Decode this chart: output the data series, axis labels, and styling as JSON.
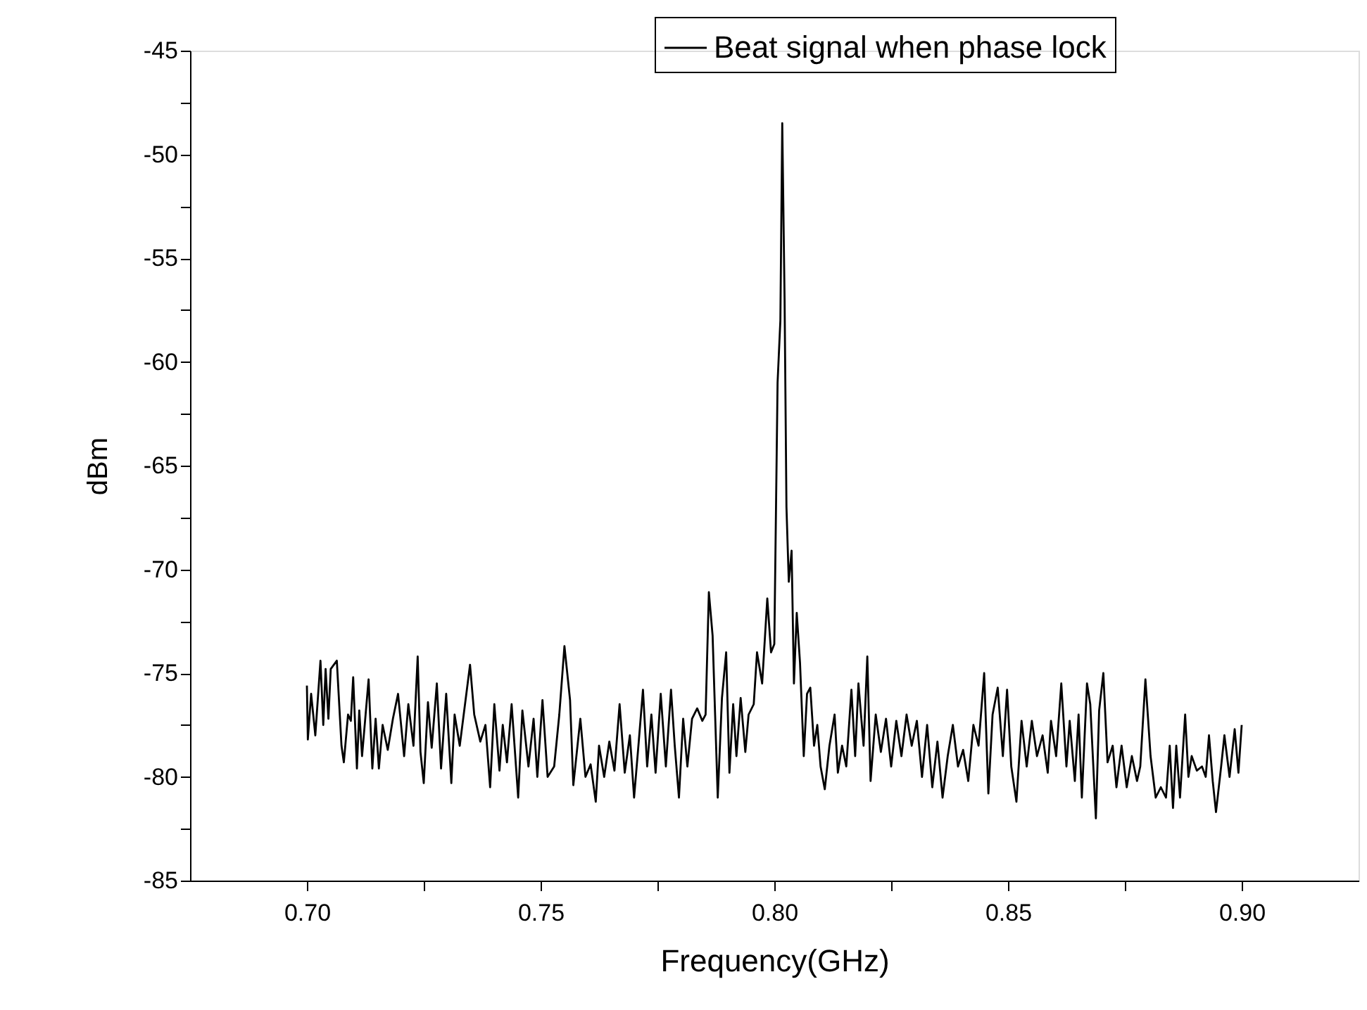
{
  "chart_data": {
    "type": "line",
    "xlabel": "Frequency(GHz)",
    "ylabel": "dBm",
    "legend": "top right",
    "line_style": "solid",
    "xlim": [
      0.675,
      0.925
    ],
    "ylim": [
      -85,
      -45
    ],
    "xticks": [
      {
        "value": 0.7,
        "label": "0.70"
      },
      {
        "value": 0.725,
        "label": null
      },
      {
        "value": 0.75,
        "label": "0.75"
      },
      {
        "value": 0.775,
        "label": null
      },
      {
        "value": 0.8,
        "label": "0.80"
      },
      {
        "value": 0.825,
        "label": null
      },
      {
        "value": 0.85,
        "label": "0.85"
      },
      {
        "value": 0.875,
        "label": null
      },
      {
        "value": 0.9,
        "label": "0.90"
      }
    ],
    "yticks": [
      -85,
      {
        "value": -82.5,
        "label": null
      },
      -80,
      {
        "value": -77.5,
        "label": null
      },
      -75,
      {
        "value": -72.5,
        "label": null
      },
      -70,
      {
        "value": -67.5,
        "label": null
      },
      -65,
      {
        "value": -62.5,
        "label": null
      },
      -60,
      {
        "value": -57.5,
        "label": null
      },
      -55,
      {
        "value": -52.5,
        "label": null
      },
      -50,
      {
        "value": -47.5,
        "label": null
      },
      -45
    ],
    "x": [
      0.7,
      0.7002,
      0.7009,
      0.7018,
      0.7029,
      0.7035,
      0.704,
      0.7046,
      0.7051,
      0.7064,
      0.7074,
      0.7079,
      0.7088,
      0.7094,
      0.7099,
      0.7107,
      0.7112,
      0.7118,
      0.7132,
      0.714,
      0.7147,
      0.7154,
      0.7162,
      0.7173,
      0.7184,
      0.7195,
      0.7208,
      0.7217,
      0.7228,
      0.7237,
      0.7243,
      0.725,
      0.7259,
      0.7267,
      0.7278,
      0.7287,
      0.7298,
      0.7309,
      0.7316,
      0.7327,
      0.7349,
      0.7358,
      0.7371,
      0.7382,
      0.7392,
      0.7401,
      0.7412,
      0.7419,
      0.7428,
      0.7438,
      0.7452,
      0.7461,
      0.7474,
      0.7485,
      0.7493,
      0.7504,
      0.7515,
      0.7529,
      0.754,
      0.7551,
      0.7563,
      0.757,
      0.7585,
      0.7596,
      0.7607,
      0.7618,
      0.7625,
      0.7636,
      0.7647,
      0.7658,
      0.7669,
      0.768,
      0.7691,
      0.77,
      0.771,
      0.7719,
      0.7728,
      0.7737,
      0.7746,
      0.7757,
      0.7768,
      0.7779,
      0.7787,
      0.7796,
      0.7805,
      0.7814,
      0.7824,
      0.7835,
      0.7846,
      0.7853,
      0.786,
      0.7868,
      0.7879,
      0.7888,
      0.7897,
      0.7904,
      0.7912,
      0.7919,
      0.7928,
      0.7938,
      0.7945,
      0.7956,
      0.7963,
      0.7974,
      0.7985,
      0.7993,
      0.8,
      0.8007,
      0.8013,
      0.8017,
      0.8022,
      0.8026,
      0.8031,
      0.8037,
      0.8042,
      0.8048,
      0.8055,
      0.8063,
      0.807,
      0.8077,
      0.8085,
      0.8092,
      0.8099,
      0.8108,
      0.8118,
      0.8129,
      0.8136,
      0.8145,
      0.8154,
      0.8165,
      0.8173,
      0.818,
      0.8191,
      0.8199,
      0.8206,
      0.8217,
      0.8228,
      0.8239,
      0.825,
      0.8261,
      0.8272,
      0.8283,
      0.8294,
      0.8305,
      0.8316,
      0.8327,
      0.8338,
      0.8349,
      0.836,
      0.8371,
      0.8382,
      0.8393,
      0.8404,
      0.8415,
      0.8426,
      0.8437,
      0.8449,
      0.8458,
      0.8467,
      0.8478,
      0.8489,
      0.8498,
      0.8507,
      0.8518,
      0.8529,
      0.854,
      0.8551,
      0.8562,
      0.8574,
      0.8585,
      0.8592,
      0.8603,
      0.8614,
      0.8625,
      0.8632,
      0.8643,
      0.8651,
      0.8658,
      0.8669,
      0.8676,
      0.8688,
      0.8695,
      0.8704,
      0.8713,
      0.8724,
      0.8732,
      0.8743,
      0.8754,
      0.8765,
      0.8776,
      0.8783,
      0.8794,
      0.8805,
      0.8816,
      0.8827,
      0.8838,
      0.8846,
      0.8853,
      0.886,
      0.8868,
      0.8879,
      0.8886,
      0.8893,
      0.8904,
      0.8915,
      0.8923,
      0.893,
      0.8938,
      0.8945,
      0.8956,
      0.8963,
      0.8974,
      0.8985,
      0.8993,
      0.9
    ],
    "series": [
      {
        "name": "Beat signal when phase lock",
        "color": "#000000",
        "values": [
          -75.6,
          -78.2,
          -76.0,
          -78.0,
          -74.4,
          -77.5,
          -74.8,
          -77.2,
          -74.8,
          -74.4,
          -78.5,
          -79.3,
          -77.0,
          -77.3,
          -75.2,
          -79.6,
          -76.8,
          -79.0,
          -75.3,
          -79.6,
          -77.2,
          -79.6,
          -77.5,
          -78.7,
          -77.2,
          -76.0,
          -79.0,
          -76.5,
          -78.5,
          -74.2,
          -78.8,
          -80.3,
          -76.4,
          -78.6,
          -75.5,
          -79.6,
          -76.0,
          -80.3,
          -77.0,
          -78.5,
          -74.6,
          -77.0,
          -78.3,
          -77.5,
          -80.5,
          -76.5,
          -79.7,
          -77.5,
          -79.3,
          -76.5,
          -81.0,
          -76.8,
          -79.5,
          -77.2,
          -80.0,
          -76.3,
          -80.0,
          -79.5,
          -77.0,
          -73.7,
          -76.3,
          -80.4,
          -77.2,
          -80.0,
          -79.4,
          -81.2,
          -78.5,
          -80.0,
          -78.3,
          -79.7,
          -76.5,
          -79.8,
          -78.0,
          -81.0,
          -78.3,
          -75.8,
          -79.5,
          -77.0,
          -79.8,
          -76.0,
          -79.5,
          -75.8,
          -78.5,
          -81.0,
          -77.2,
          -79.5,
          -77.2,
          -76.7,
          -77.3,
          -77.0,
          -71.1,
          -73.2,
          -81.0,
          -76.2,
          -74.0,
          -79.8,
          -76.5,
          -79.0,
          -76.2,
          -78.8,
          -77.0,
          -76.5,
          -74.0,
          -75.5,
          -71.4,
          -74.0,
          -73.6,
          -61.0,
          -58.0,
          -48.5,
          -57.0,
          -67.0,
          -70.6,
          -69.1,
          -75.5,
          -72.1,
          -74.5,
          -79.0,
          -76.0,
          -75.7,
          -78.5,
          -77.5,
          -79.5,
          -80.6,
          -78.5,
          -77.0,
          -79.8,
          -78.5,
          -79.5,
          -75.8,
          -79.0,
          -75.5,
          -78.5,
          -74.2,
          -80.2,
          -77.0,
          -78.8,
          -77.2,
          -79.5,
          -77.3,
          -79.0,
          -77.0,
          -78.5,
          -77.3,
          -80.0,
          -77.5,
          -80.5,
          -78.3,
          -81.0,
          -79.0,
          -77.5,
          -79.5,
          -78.7,
          -80.2,
          -77.5,
          -78.5,
          -75.0,
          -80.8,
          -77.0,
          -75.7,
          -79.0,
          -75.8,
          -79.5,
          -81.2,
          -77.3,
          -79.5,
          -77.3,
          -79.0,
          -78.0,
          -79.8,
          -77.3,
          -79.0,
          -75.5,
          -79.5,
          -77.3,
          -80.2,
          -77.0,
          -81.0,
          -75.5,
          -76.5,
          -82.0,
          -76.8,
          -75.0,
          -79.3,
          -78.5,
          -80.5,
          -78.5,
          -80.5,
          -79.0,
          -80.2,
          -79.5,
          -75.3,
          -79.0,
          -81.0,
          -80.5,
          -81.0,
          -78.5,
          -81.5,
          -78.5,
          -81.0,
          -77.0,
          -80.0,
          -79.0,
          -79.7,
          -79.5,
          -80.0,
          -78.0,
          -80.2,
          -81.7,
          -79.5,
          -78.0,
          -80.0,
          -77.7,
          -79.8,
          -77.5
        ]
      }
    ]
  }
}
